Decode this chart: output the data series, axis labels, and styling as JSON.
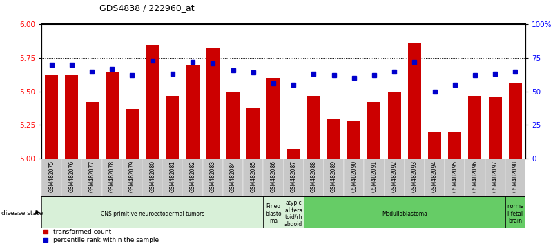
{
  "title": "GDS4838 / 222960_at",
  "samples": [
    "GSM482075",
    "GSM482076",
    "GSM482077",
    "GSM482078",
    "GSM482079",
    "GSM482080",
    "GSM482081",
    "GSM482082",
    "GSM482083",
    "GSM482084",
    "GSM482085",
    "GSM482086",
    "GSM482087",
    "GSM482088",
    "GSM482089",
    "GSM482090",
    "GSM482091",
    "GSM482092",
    "GSM482093",
    "GSM482094",
    "GSM482095",
    "GSM482096",
    "GSM482097",
    "GSM482098"
  ],
  "bar_values": [
    5.62,
    5.62,
    5.42,
    5.65,
    5.37,
    5.85,
    5.47,
    5.7,
    5.82,
    5.5,
    5.38,
    5.6,
    5.07,
    5.47,
    5.3,
    5.28,
    5.42,
    5.5,
    5.86,
    5.2,
    5.2,
    5.47,
    5.46,
    5.56
  ],
  "percentile_values": [
    70,
    70,
    65,
    67,
    62,
    73,
    63,
    72,
    71,
    66,
    64,
    56,
    55,
    63,
    62,
    60,
    62,
    65,
    72,
    50,
    55,
    62,
    63,
    65
  ],
  "bar_color": "#cc0000",
  "percentile_color": "#0000cc",
  "ylim_left": [
    5.0,
    6.0
  ],
  "ylim_right": [
    0,
    100
  ],
  "yticks_left": [
    5.0,
    5.25,
    5.5,
    5.75,
    6.0
  ],
  "yticks_right": [
    0,
    25,
    50,
    75,
    100
  ],
  "ytick_labels_right": [
    "0",
    "25",
    "50",
    "75",
    "100%"
  ],
  "gridlines_at": [
    5.25,
    5.5,
    5.75
  ],
  "disease_groups": [
    {
      "label": "CNS primitive neuroectodermal tumors",
      "start": 0,
      "end": 11,
      "color": "#d8f0d8"
    },
    {
      "label": "Pineo\nblasto\nma",
      "start": 11,
      "end": 12,
      "color": "#d8f0d8"
    },
    {
      "label": "atypic\nal tera\ntoid/rh\nabdoid",
      "start": 12,
      "end": 13,
      "color": "#d8f0d8"
    },
    {
      "label": "Medulloblastoma",
      "start": 13,
      "end": 23,
      "color": "#66cc66"
    },
    {
      "label": "norma\nl fetal\nbrain",
      "start": 23,
      "end": 24,
      "color": "#66cc66"
    }
  ],
  "legend_items": [
    {
      "label": "transformed count",
      "color": "#cc0000"
    },
    {
      "label": "percentile rank within the sample",
      "color": "#0000cc"
    }
  ],
  "disease_state_label": "disease state",
  "tick_label_bg": "#c8c8c8",
  "background_color": "#ffffff"
}
